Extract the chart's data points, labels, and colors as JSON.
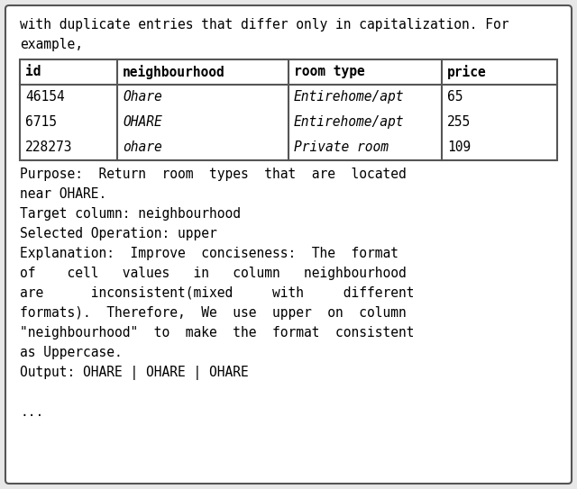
{
  "bg_color": "#e8e8e8",
  "box_color": "#ffffff",
  "border_color": "#555555",
  "intro_line1": "with duplicate entries that differ only in capitalization. For",
  "intro_line2": "example,",
  "table_headers": [
    "id",
    "neighbourhood",
    "room type",
    "price"
  ],
  "table_rows": [
    [
      "46154",
      "Ohare",
      "Entirehome/apt",
      "65"
    ],
    [
      "6715",
      "OHARE",
      "Entirehome/apt",
      "255"
    ],
    [
      "228273",
      "ohare",
      "Private room",
      "109"
    ]
  ],
  "body_lines": [
    "Purpose:  Return  room  types  that  are  located",
    "near OHARE.",
    "Target column: neighbourhood",
    "Selected Operation: upper",
    "Explanation:  Improve  conciseness:  The  format",
    "of    cell   values   in   column   neighbourhood",
    "are      inconsistent(mixed     with     different",
    "formats).  Therefore,  We  use  upper  on  column",
    "\"neighbourhood\"  to  make  the  format  consistent",
    "as Uppercase.",
    "Output: OHARE | OHARE | OHARE",
    "",
    "..."
  ],
  "font_size": 10.5,
  "font_family": "DejaVu Sans Mono"
}
